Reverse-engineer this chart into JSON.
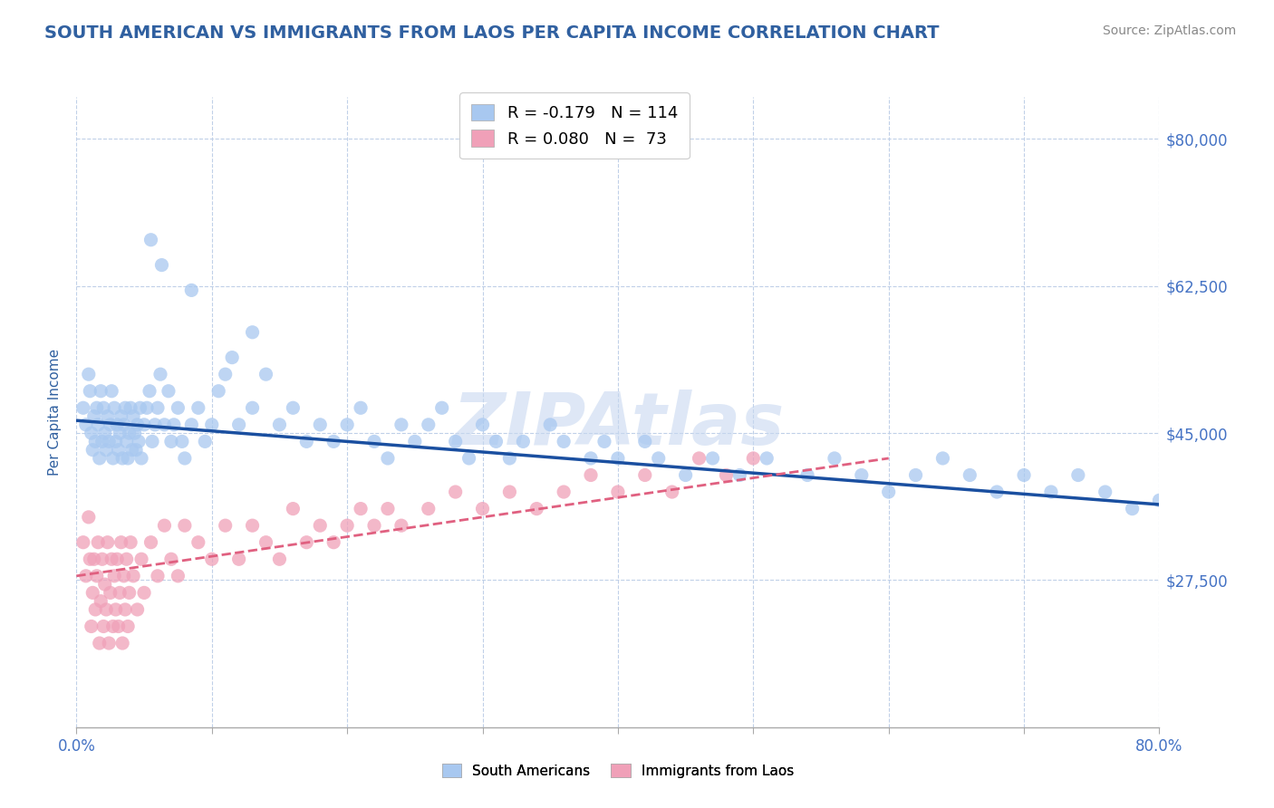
{
  "title": "SOUTH AMERICAN VS IMMIGRANTS FROM LAOS PER CAPITA INCOME CORRELATION CHART",
  "source_text": "Source: ZipAtlas.com",
  "ylabel": "Per Capita Income",
  "xlim": [
    0.0,
    0.8
  ],
  "ylim": [
    10000,
    85000
  ],
  "yticks": [
    27500,
    45000,
    62500,
    80000
  ],
  "ytick_labels": [
    "$27,500",
    "$45,000",
    "$62,500",
    "$80,000"
  ],
  "blue_color": "#a8c8f0",
  "pink_color": "#f0a0b8",
  "blue_line_color": "#1a4fa0",
  "pink_line_color": "#e06080",
  "title_color": "#3060a0",
  "axis_label_color": "#3060a0",
  "tick_color": "#4472c4",
  "grid_color": "#c0d0e8",
  "watermark": "ZIPAtlas",
  "watermark_color": "#c8d8f0",
  "legend1_r": "R = -0.179",
  "legend1_n": "N = 114",
  "legend2_r": "R = 0.080",
  "legend2_n": "N =  73",
  "blue_trend_x": [
    0.0,
    0.8
  ],
  "blue_trend_y": [
    46500,
    36500
  ],
  "pink_trend_x": [
    0.0,
    0.6
  ],
  "pink_trend_y": [
    28000,
    42000
  ],
  "blue_scatter_x": [
    0.005,
    0.007,
    0.009,
    0.01,
    0.011,
    0.012,
    0.013,
    0.014,
    0.015,
    0.016,
    0.017,
    0.018,
    0.019,
    0.02,
    0.021,
    0.022,
    0.023,
    0.024,
    0.025,
    0.026,
    0.027,
    0.028,
    0.029,
    0.03,
    0.031,
    0.032,
    0.033,
    0.034,
    0.035,
    0.036,
    0.037,
    0.038,
    0.039,
    0.04,
    0.041,
    0.042,
    0.043,
    0.044,
    0.045,
    0.046,
    0.047,
    0.048,
    0.05,
    0.052,
    0.054,
    0.056,
    0.058,
    0.06,
    0.062,
    0.065,
    0.068,
    0.07,
    0.072,
    0.075,
    0.078,
    0.08,
    0.085,
    0.09,
    0.095,
    0.1,
    0.105,
    0.11,
    0.115,
    0.12,
    0.13,
    0.14,
    0.15,
    0.16,
    0.17,
    0.18,
    0.19,
    0.2,
    0.21,
    0.22,
    0.23,
    0.24,
    0.25,
    0.26,
    0.27,
    0.28,
    0.29,
    0.3,
    0.31,
    0.32,
    0.33,
    0.35,
    0.36,
    0.38,
    0.39,
    0.4,
    0.42,
    0.43,
    0.45,
    0.47,
    0.49,
    0.51,
    0.54,
    0.56,
    0.58,
    0.6,
    0.62,
    0.64,
    0.66,
    0.68,
    0.7,
    0.72,
    0.74,
    0.76,
    0.78,
    0.8,
    0.055,
    0.063,
    0.085,
    0.13
  ],
  "blue_scatter_y": [
    48000,
    46000,
    52000,
    50000,
    45000,
    43000,
    47000,
    44000,
    48000,
    46000,
    42000,
    50000,
    44000,
    48000,
    45000,
    43000,
    47000,
    44000,
    46000,
    50000,
    42000,
    48000,
    44000,
    46000,
    43000,
    45000,
    47000,
    42000,
    46000,
    48000,
    44000,
    42000,
    45000,
    48000,
    43000,
    47000,
    45000,
    43000,
    46000,
    44000,
    48000,
    42000,
    46000,
    48000,
    50000,
    44000,
    46000,
    48000,
    52000,
    46000,
    50000,
    44000,
    46000,
    48000,
    44000,
    42000,
    46000,
    48000,
    44000,
    46000,
    50000,
    52000,
    54000,
    46000,
    48000,
    52000,
    46000,
    48000,
    44000,
    46000,
    44000,
    46000,
    48000,
    44000,
    42000,
    46000,
    44000,
    46000,
    48000,
    44000,
    42000,
    46000,
    44000,
    42000,
    44000,
    46000,
    44000,
    42000,
    44000,
    42000,
    44000,
    42000,
    40000,
    42000,
    40000,
    42000,
    40000,
    42000,
    40000,
    38000,
    40000,
    42000,
    40000,
    38000,
    40000,
    38000,
    40000,
    38000,
    36000,
    37000,
    68000,
    65000,
    62000,
    57000
  ],
  "pink_scatter_x": [
    0.005,
    0.007,
    0.009,
    0.01,
    0.011,
    0.012,
    0.013,
    0.014,
    0.015,
    0.016,
    0.017,
    0.018,
    0.019,
    0.02,
    0.021,
    0.022,
    0.023,
    0.024,
    0.025,
    0.026,
    0.027,
    0.028,
    0.029,
    0.03,
    0.031,
    0.032,
    0.033,
    0.034,
    0.035,
    0.036,
    0.037,
    0.038,
    0.039,
    0.04,
    0.042,
    0.045,
    0.048,
    0.05,
    0.055,
    0.06,
    0.065,
    0.07,
    0.075,
    0.08,
    0.09,
    0.1,
    0.11,
    0.12,
    0.13,
    0.14,
    0.15,
    0.16,
    0.17,
    0.18,
    0.19,
    0.2,
    0.21,
    0.22,
    0.23,
    0.24,
    0.26,
    0.28,
    0.3,
    0.32,
    0.34,
    0.36,
    0.38,
    0.4,
    0.42,
    0.44,
    0.46,
    0.48,
    0.5
  ],
  "pink_scatter_y": [
    32000,
    28000,
    35000,
    30000,
    22000,
    26000,
    30000,
    24000,
    28000,
    32000,
    20000,
    25000,
    30000,
    22000,
    27000,
    24000,
    32000,
    20000,
    26000,
    30000,
    22000,
    28000,
    24000,
    30000,
    22000,
    26000,
    32000,
    20000,
    28000,
    24000,
    30000,
    22000,
    26000,
    32000,
    28000,
    24000,
    30000,
    26000,
    32000,
    28000,
    34000,
    30000,
    28000,
    34000,
    32000,
    30000,
    34000,
    30000,
    34000,
    32000,
    30000,
    36000,
    32000,
    34000,
    32000,
    34000,
    36000,
    34000,
    36000,
    34000,
    36000,
    38000,
    36000,
    38000,
    36000,
    38000,
    40000,
    38000,
    40000,
    38000,
    42000,
    40000,
    42000
  ]
}
